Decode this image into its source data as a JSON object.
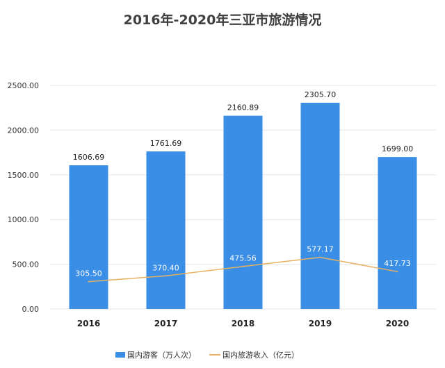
{
  "chart_data": {
    "type": "bar",
    "title": "2016年-2020年三亚市旅游情况",
    "categories": [
      "2016",
      "2017",
      "2018",
      "2019",
      "2020"
    ],
    "series": [
      {
        "name": "国内游客（万人次）",
        "type": "bar",
        "color": "#3a8ee6",
        "values": [
          1606.69,
          1761.69,
          2160.89,
          2305.7,
          1699.0
        ]
      },
      {
        "name": "国内旅游收入（亿元）",
        "type": "line",
        "color": "#e8b060",
        "values": [
          305.5,
          370.4,
          475.56,
          577.17,
          417.73
        ]
      }
    ],
    "ylim": [
      0,
      2500
    ],
    "yticks": [
      "0.00",
      "500.00",
      "1000.00",
      "1500.00",
      "2000.00",
      "2500.00"
    ],
    "grid": true,
    "legend": "bottom",
    "xlabel": "",
    "ylabel": ""
  }
}
